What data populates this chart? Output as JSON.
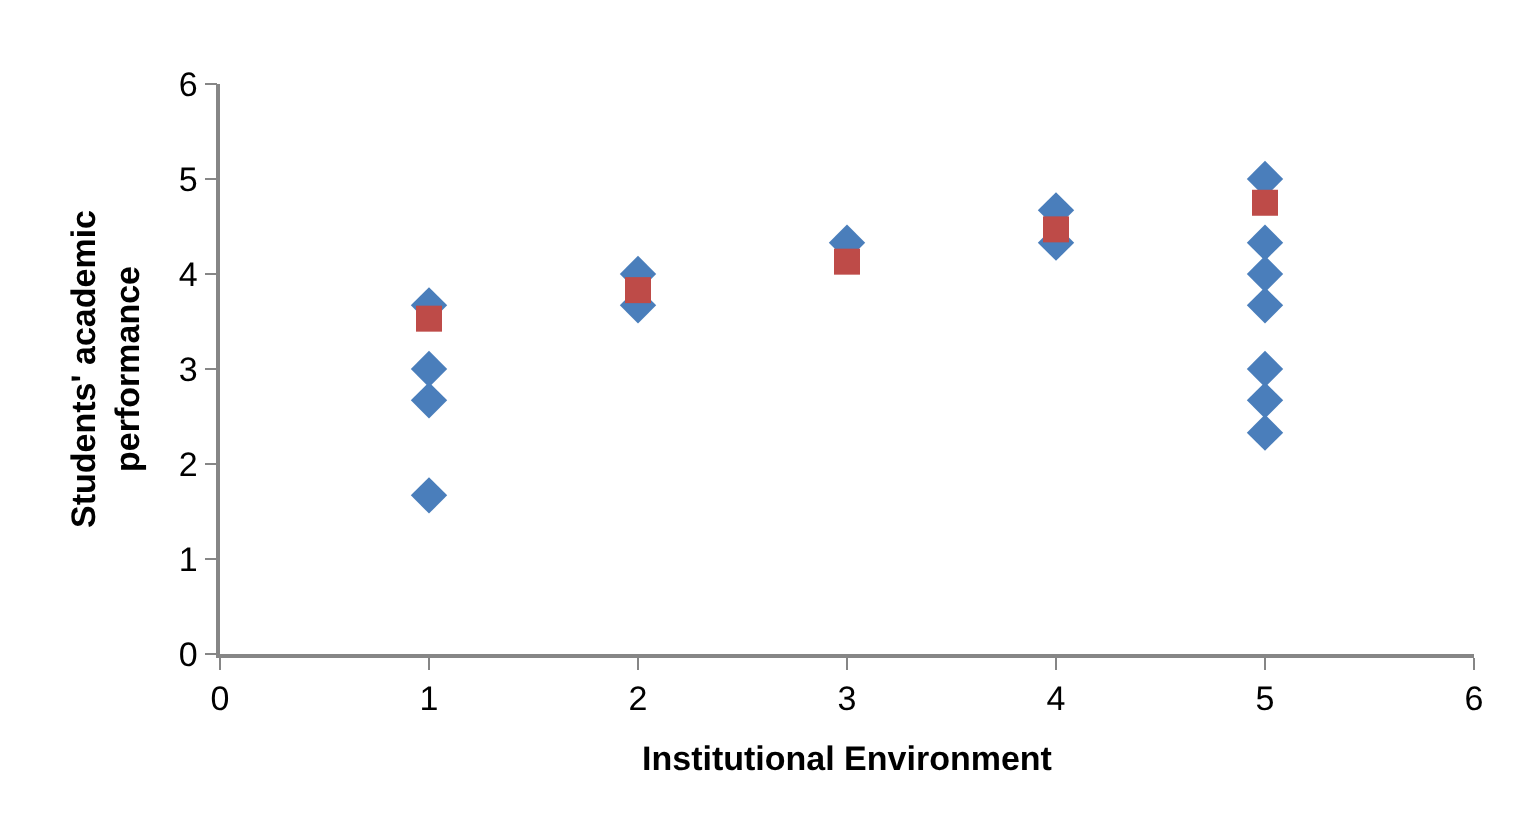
{
  "chart_data": {
    "type": "scatter",
    "xlabel": "Institutional Environment",
    "ylabel": "Students' academic performance",
    "xlim": [
      0,
      6
    ],
    "ylim": [
      0,
      6
    ],
    "xticks": [
      0,
      1,
      2,
      3,
      4,
      5,
      6
    ],
    "yticks": [
      0,
      1,
      2,
      3,
      4,
      5,
      6
    ],
    "grid": false,
    "legend": false,
    "series": [
      {
        "color": "#4a7ebb",
        "marker": "diamond",
        "x": [
          1,
          1,
          1,
          1,
          2,
          2,
          3,
          4,
          4,
          5,
          5,
          5,
          5,
          5,
          5,
          5
        ],
        "values": [
          3.67,
          3,
          2.67,
          1.67,
          4,
          3.67,
          4.33,
          4.67,
          4.33,
          5,
          4.33,
          4,
          3.67,
          3,
          2.67,
          2.33
        ]
      },
      {
        "color": "#be4b48",
        "marker": "square",
        "x": [
          1,
          2,
          3,
          4,
          5
        ],
        "values": [
          3.53,
          3.83,
          4.13,
          4.47,
          4.75
        ]
      }
    ]
  }
}
